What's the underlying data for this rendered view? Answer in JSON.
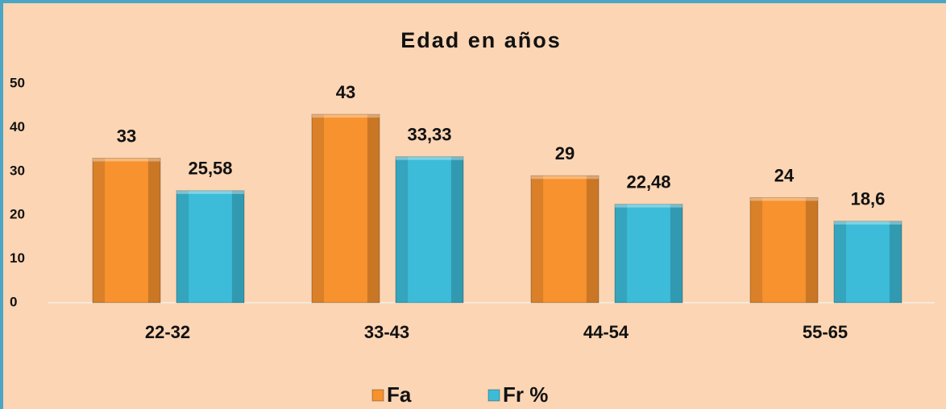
{
  "chart_data": {
    "type": "bar",
    "title": "Edad en años",
    "categories": [
      "22-32",
      "33-43",
      "44-54",
      "55-65"
    ],
    "series": [
      {
        "name": "Fa",
        "color": "#f7922e",
        "values": [
          33,
          43,
          29,
          24
        ]
      },
      {
        "name": "Fr %",
        "color": "#3cbcd8",
        "values": [
          25.58,
          33.33,
          22.48,
          18.6
        ],
        "value_labels": [
          "25,58",
          "33,33",
          "22,48",
          "18,6"
        ]
      }
    ],
    "ylim": [
      0,
      50
    ],
    "yticks": [
      0,
      10,
      20,
      30,
      40,
      50
    ],
    "legend": "bottom"
  }
}
